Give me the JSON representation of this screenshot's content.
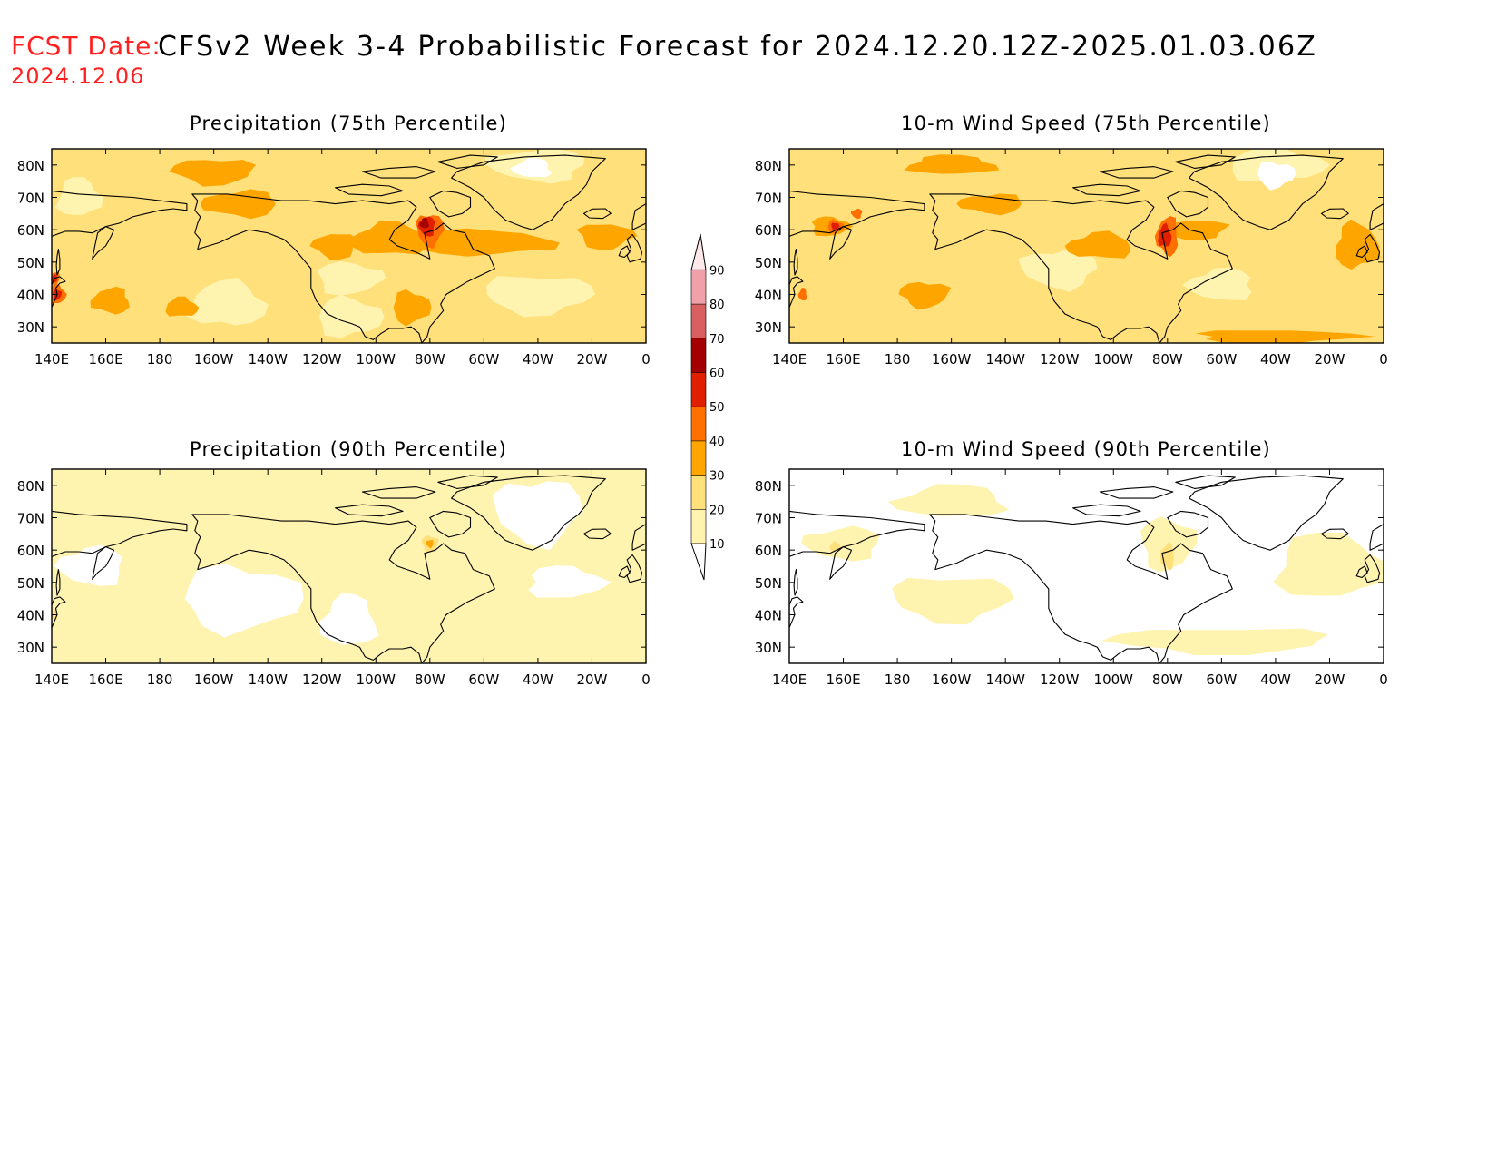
{
  "header": {
    "fcst_label": "FCST Date:",
    "fcst_date": "2024.12.06",
    "title": "CFSv2 Week 3-4 Probabilistic Forecast for 2024.12.20.12Z-2025.01.03.06Z"
  },
  "colors": {
    "bins": [
      "#ffffff",
      "#fff3b0",
      "#ffe07a",
      "#ffa500",
      "#ff7000",
      "#e01e00",
      "#a50000",
      "#d96060",
      "#f0a0a8",
      "#ffe8ea"
    ]
  },
  "colorbar": {
    "levels": [
      "10",
      "20",
      "30",
      "40",
      "50",
      "60",
      "70",
      "80",
      "90"
    ]
  },
  "axes": {
    "lon_labels": [
      "140E",
      "160E",
      "180",
      "160W",
      "140W",
      "120W",
      "100W",
      "80W",
      "60W",
      "40W",
      "20W",
      "0"
    ],
    "lat_labels": [
      "80N",
      "70N",
      "60N",
      "50N",
      "40N",
      "30N"
    ]
  },
  "panels": [
    {
      "id": "precip75",
      "title": "Precipitation (75th Percentile)",
      "base_bin": 2,
      "regions": [
        {
          "bin": 1,
          "lon": 205,
          "lat": 37,
          "rx": 14,
          "ry": 7
        },
        {
          "bin": 1,
          "lon": 250,
          "lat": 33,
          "rx": 12,
          "ry": 6
        },
        {
          "bin": 1,
          "lon": 320,
          "lat": 40,
          "rx": 20,
          "ry": 6
        },
        {
          "bin": 1,
          "lon": 320,
          "lat": 80,
          "rx": 18,
          "ry": 5
        },
        {
          "bin": 0,
          "lon": 318,
          "lat": 79,
          "rx": 7,
          "ry": 3
        },
        {
          "bin": 1,
          "lon": 150,
          "lat": 70,
          "rx": 8,
          "ry": 6
        },
        {
          "bin": 1,
          "lon": 250,
          "lat": 45,
          "rx": 12,
          "ry": 5
        },
        {
          "bin": 3,
          "lon": 200,
          "lat": 78,
          "rx": 15,
          "ry": 4
        },
        {
          "bin": 3,
          "lon": 210,
          "lat": 68,
          "rx": 14,
          "ry": 4
        },
        {
          "bin": 3,
          "lon": 265,
          "lat": 57,
          "rx": 14,
          "ry": 5
        },
        {
          "bin": 3,
          "lon": 300,
          "lat": 56,
          "rx": 25,
          "ry": 4
        },
        {
          "bin": 3,
          "lon": 345,
          "lat": 58,
          "rx": 10,
          "ry": 4
        },
        {
          "bin": 3,
          "lon": 245,
          "lat": 55,
          "rx": 8,
          "ry": 4
        },
        {
          "bin": 3,
          "lon": 162,
          "lat": 38,
          "rx": 7,
          "ry": 4
        },
        {
          "bin": 3,
          "lon": 188,
          "lat": 36,
          "rx": 6,
          "ry": 3
        },
        {
          "bin": 3,
          "lon": 273,
          "lat": 36,
          "rx": 7,
          "ry": 5
        },
        {
          "bin": 4,
          "lon": 280,
          "lat": 60,
          "rx": 5,
          "ry": 5
        },
        {
          "bin": 5,
          "lon": 279,
          "lat": 61,
          "rx": 3,
          "ry": 3
        },
        {
          "bin": 6,
          "lon": 278,
          "lat": 62,
          "rx": 1.6,
          "ry": 1.6
        },
        {
          "bin": 4,
          "lon": 142,
          "lat": 40,
          "rx": 3,
          "ry": 3
        },
        {
          "bin": 5,
          "lon": 142,
          "lat": 40,
          "rx": 1.6,
          "ry": 1.6
        },
        {
          "bin": 4,
          "lon": 141,
          "lat": 45,
          "rx": 2,
          "ry": 2
        },
        {
          "bin": 5,
          "lon": 141,
          "lat": 45,
          "rx": 1.1,
          "ry": 1.1
        }
      ]
    },
    {
      "id": "wind75",
      "title": "10-m Wind Speed (75th Percentile)",
      "base_bin": 2,
      "regions": [
        {
          "bin": 1,
          "lon": 320,
          "lat": 80,
          "rx": 18,
          "ry": 5
        },
        {
          "bin": 0,
          "lon": 320,
          "lat": 77,
          "rx": 7,
          "ry": 4
        },
        {
          "bin": 1,
          "lon": 240,
          "lat": 48,
          "rx": 14,
          "ry": 6
        },
        {
          "bin": 1,
          "lon": 300,
          "lat": 43,
          "rx": 12,
          "ry": 5
        },
        {
          "bin": 3,
          "lon": 200,
          "lat": 80,
          "rx": 16,
          "ry": 3
        },
        {
          "bin": 3,
          "lon": 155,
          "lat": 61,
          "rx": 7,
          "ry": 3
        },
        {
          "bin": 3,
          "lon": 190,
          "lat": 40,
          "rx": 9,
          "ry": 4
        },
        {
          "bin": 3,
          "lon": 215,
          "lat": 68,
          "rx": 12,
          "ry": 3
        },
        {
          "bin": 3,
          "lon": 255,
          "lat": 55,
          "rx": 12,
          "ry": 4
        },
        {
          "bin": 3,
          "lon": 350,
          "lat": 55,
          "rx": 8,
          "ry": 7
        },
        {
          "bin": 3,
          "lon": 320,
          "lat": 27,
          "rx": 30,
          "ry": 2
        },
        {
          "bin": 3,
          "lon": 290,
          "lat": 60,
          "rx": 12,
          "ry": 3
        },
        {
          "bin": 4,
          "lon": 280,
          "lat": 58,
          "rx": 4,
          "ry": 6
        },
        {
          "bin": 5,
          "lon": 279,
          "lat": 58,
          "rx": 2.4,
          "ry": 3.5
        },
        {
          "bin": 4,
          "lon": 157,
          "lat": 61,
          "rx": 3,
          "ry": 2
        },
        {
          "bin": 5,
          "lon": 157,
          "lat": 61,
          "rx": 1.5,
          "ry": 1.2
        },
        {
          "bin": 4,
          "lon": 165,
          "lat": 65,
          "rx": 2,
          "ry": 1.5
        },
        {
          "bin": 4,
          "lon": 145,
          "lat": 40,
          "rx": 1.5,
          "ry": 2
        }
      ]
    },
    {
      "id": "precip90",
      "title": "Precipitation (90th Percentile)",
      "base_bin": 1,
      "regions": [
        {
          "bin": 0,
          "lon": 210,
          "lat": 45,
          "rx": 22,
          "ry": 10
        },
        {
          "bin": 0,
          "lon": 320,
          "lat": 72,
          "rx": 16,
          "ry": 10
        },
        {
          "bin": 0,
          "lon": 155,
          "lat": 55,
          "rx": 12,
          "ry": 6
        },
        {
          "bin": 0,
          "lon": 250,
          "lat": 38,
          "rx": 10,
          "ry": 8
        },
        {
          "bin": 0,
          "lon": 330,
          "lat": 50,
          "rx": 14,
          "ry": 5
        },
        {
          "bin": 2,
          "lon": 280,
          "lat": 62,
          "rx": 3,
          "ry": 2.5
        },
        {
          "bin": 3,
          "lon": 280,
          "lat": 62,
          "rx": 1.4,
          "ry": 1.2
        },
        {
          "bin": 2,
          "lon": 141,
          "lat": 40,
          "rx": 1.2,
          "ry": 1.5
        }
      ]
    },
    {
      "id": "wind90",
      "title": "10-m Wind Speed (90th Percentile)",
      "base_bin": 0,
      "regions": [
        {
          "bin": 1,
          "lon": 200,
          "lat": 45,
          "rx": 22,
          "ry": 7
        },
        {
          "bin": 1,
          "lon": 160,
          "lat": 62,
          "rx": 14,
          "ry": 5
        },
        {
          "bin": 1,
          "lon": 200,
          "lat": 75,
          "rx": 20,
          "ry": 5
        },
        {
          "bin": 1,
          "lon": 340,
          "lat": 55,
          "rx": 20,
          "ry": 10
        },
        {
          "bin": 1,
          "lon": 280,
          "lat": 62,
          "rx": 10,
          "ry": 8
        },
        {
          "bin": 1,
          "lon": 300,
          "lat": 32,
          "rx": 40,
          "ry": 4
        },
        {
          "bin": 2,
          "lon": 280,
          "lat": 58,
          "rx": 2.5,
          "ry": 4
        },
        {
          "bin": 2,
          "lon": 157,
          "lat": 61,
          "rx": 2,
          "ry": 1.5
        }
      ]
    }
  ]
}
